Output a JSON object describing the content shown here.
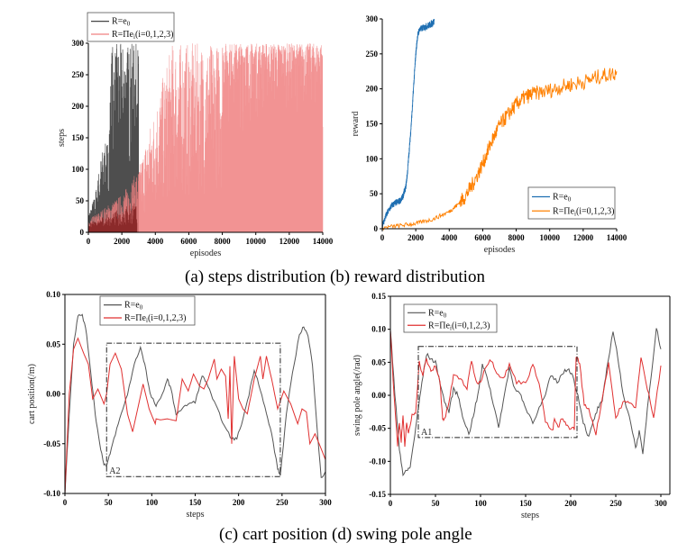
{
  "captions": {
    "top": "(a) steps distribution   (b) reward distribution",
    "bottom": "(c) cart position   (d) swing pole angle"
  },
  "chart_data": [
    {
      "id": "a",
      "type": "line",
      "title": "(a) steps distribution",
      "xlabel": "episodes",
      "ylabel": "steps",
      "xlim": [
        0,
        14000
      ],
      "ylim": [
        0,
        300
      ],
      "xticks": [
        0,
        2000,
        4000,
        6000,
        8000,
        10000,
        12000,
        14000
      ],
      "yticks": [
        0,
        50,
        100,
        150,
        200,
        250,
        300
      ],
      "legend": "top-left-outside",
      "series": [
        {
          "name": "R=e0",
          "name_main": "R=e",
          "name_sub": "0",
          "color": "#444444",
          "x": [
            0,
            400,
            800,
            1200,
            1400,
            1600,
            2000,
            2400,
            2800,
            3000
          ],
          "y_low": [
            0,
            5,
            10,
            15,
            20,
            25,
            40,
            60,
            80,
            100
          ],
          "y_high": [
            30,
            60,
            130,
            150,
            300,
            300,
            300,
            300,
            300,
            300
          ]
        },
        {
          "name": "R=Πei(i=0,1,2,3)",
          "name_main": "R=Πe",
          "name_sub": "i",
          "name_rest": "(i=0,1,2,3)",
          "color": "#f08080",
          "x": [
            0,
            1000,
            2000,
            3000,
            4000,
            5000,
            6000,
            7000,
            8000,
            9000,
            10000,
            11000,
            12000,
            13000,
            14000
          ],
          "y_low": [
            0,
            5,
            10,
            20,
            30,
            40,
            50,
            60,
            60,
            70,
            70,
            70,
            70,
            70,
            70
          ],
          "y_high": [
            20,
            40,
            60,
            100,
            200,
            300,
            300,
            300,
            300,
            300,
            300,
            300,
            300,
            300,
            300
          ]
        }
      ]
    },
    {
      "id": "b",
      "type": "line",
      "title": "(b) reward distribution",
      "xlabel": "episodes",
      "ylabel": "reward",
      "xlim": [
        0,
        14000
      ],
      "ylim": [
        0,
        300
      ],
      "xticks": [
        0,
        2000,
        4000,
        6000,
        8000,
        10000,
        12000,
        14000
      ],
      "yticks": [
        0,
        50,
        100,
        150,
        200,
        250,
        300
      ],
      "legend": "bottom-right",
      "series": [
        {
          "name": "R=e0",
          "name_main": "R=e",
          "name_sub": "0",
          "color": "#1f6fb2",
          "x": [
            0,
            200,
            400,
            600,
            800,
            1000,
            1200,
            1400,
            1500,
            1600,
            1700,
            1800,
            1900,
            2000,
            2100,
            2200,
            2400,
            2600,
            2800,
            3000,
            3100
          ],
          "y": [
            5,
            18,
            28,
            35,
            38,
            40,
            45,
            60,
            80,
            110,
            140,
            175,
            215,
            250,
            275,
            285,
            288,
            290,
            292,
            295,
            298
          ]
        },
        {
          "name": "R=Πei(i=0,1,2,3)",
          "name_main": "R=Πe",
          "name_sub": "i",
          "name_rest": "(i=0,1,2,3)",
          "color": "#ff8000",
          "x": [
            0,
            1000,
            2000,
            3000,
            4000,
            4500,
            5000,
            5500,
            6000,
            6500,
            7000,
            7500,
            8000,
            8500,
            9000,
            10000,
            11000,
            12000,
            13000,
            14000
          ],
          "y": [
            2,
            5,
            8,
            14,
            25,
            35,
            50,
            70,
            95,
            125,
            150,
            165,
            180,
            190,
            195,
            200,
            207,
            212,
            220,
            225
          ]
        }
      ]
    },
    {
      "id": "c",
      "type": "line",
      "title": "(c) cart position",
      "xlabel": "steps",
      "ylabel": "cart position(/m)",
      "xlim": [
        0,
        300
      ],
      "ylim": [
        -0.1,
        0.1
      ],
      "xticks": [
        0,
        50,
        100,
        150,
        200,
        250,
        300
      ],
      "yticks": [
        -0.1,
        -0.05,
        0.0,
        0.05,
        0.1
      ],
      "legend": "top-left",
      "annotation": {
        "label": "A2",
        "box_x": [
          48,
          248
        ],
        "box_y": [
          -0.083,
          0.051
        ]
      },
      "series": [
        {
          "name": "R=e0",
          "name_main": "R=e",
          "name_sub": "0",
          "color": "#555555",
          "x": [
            0,
            5,
            10,
            15,
            20,
            25,
            30,
            35,
            40,
            45,
            48,
            52,
            58,
            65,
            72,
            80,
            87,
            92,
            98,
            105,
            110,
            118,
            122,
            128,
            135,
            142,
            150,
            158,
            163,
            170,
            178,
            185,
            192,
            198,
            205,
            212,
            218,
            225,
            232,
            238,
            245,
            248,
            255,
            262,
            270,
            275,
            280,
            285,
            290,
            295,
            300
          ],
          "y": [
            -0.1,
            -0.02,
            0.05,
            0.078,
            0.08,
            0.06,
            0.02,
            -0.02,
            -0.05,
            -0.07,
            -0.073,
            -0.06,
            -0.04,
            -0.02,
            0.0,
            0.03,
            0.047,
            0.03,
            0.0,
            -0.012,
            -0.005,
            0.015,
            0.005,
            -0.02,
            -0.015,
            -0.01,
            -0.008,
            0.018,
            0.012,
            -0.005,
            -0.02,
            -0.035,
            -0.045,
            -0.045,
            -0.025,
            0.0,
            0.025,
            0.005,
            -0.02,
            -0.04,
            -0.075,
            -0.082,
            -0.02,
            0.02,
            0.06,
            0.068,
            0.058,
            0.03,
            -0.03,
            -0.085,
            -0.078
          ]
        },
        {
          "name": "R=Πei(i=0,1,2,3)",
          "name_main": "R=Πe",
          "name_sub": "i",
          "name_rest": "(i=0,1,2,3)",
          "color": "#e03030",
          "x": [
            0,
            5,
            10,
            15,
            22,
            27,
            32,
            38,
            45,
            48,
            52,
            58,
            65,
            72,
            78,
            85,
            90,
            97,
            104,
            105,
            110,
            118,
            128,
            135,
            142,
            148,
            155,
            160,
            165,
            172,
            175,
            180,
            185,
            188,
            190,
            192,
            195,
            200,
            205,
            210,
            218,
            225,
            228,
            232,
            238,
            245,
            252,
            260,
            268,
            273,
            278,
            282,
            288,
            295,
            300
          ],
          "y": [
            -0.1,
            0.0,
            0.045,
            0.056,
            0.04,
            0.03,
            -0.005,
            0.005,
            -0.01,
            0.0,
            0.03,
            0.041,
            0.025,
            -0.02,
            -0.038,
            -0.01,
            0.01,
            -0.015,
            -0.03,
            -0.025,
            -0.026,
            -0.025,
            -0.027,
            0.015,
            0.003,
            0.02,
            0.008,
            0.005,
            0.015,
            0.035,
            0.015,
            0.025,
            0.018,
            -0.025,
            0.028,
            -0.05,
            0.038,
            -0.005,
            -0.015,
            -0.02,
            0.015,
            0.038,
            0.015,
            0.038,
            0.015,
            -0.015,
            0.003,
            -0.01,
            -0.03,
            -0.015,
            -0.018,
            -0.05,
            -0.04,
            -0.055,
            -0.066
          ]
        }
      ]
    },
    {
      "id": "d",
      "type": "line",
      "title": "(d) swing pole angle",
      "xlabel": "steps",
      "ylabel": "swing pole angle(/rad)",
      "xlim": [
        0,
        300
      ],
      "ylim": [
        -0.15,
        0.15
      ],
      "xticks": [
        0,
        50,
        100,
        150,
        200,
        250,
        300
      ],
      "yticks": [
        -0.15,
        -0.1,
        -0.05,
        0.0,
        0.05,
        0.1,
        0.15
      ],
      "legend": "top-left",
      "annotation": {
        "label": "A1",
        "box_x": [
          31,
          207
        ],
        "box_y": [
          -0.064,
          0.074
        ]
      },
      "series": [
        {
          "name": "R=e0",
          "name_main": "R=e",
          "name_sub": "0",
          "color": "#555555",
          "x": [
            0,
            5,
            10,
            14,
            18,
            22,
            26,
            30,
            35,
            40,
            45,
            50,
            55,
            60,
            65,
            70,
            75,
            80,
            87,
            92,
            97,
            102,
            107,
            112,
            120,
            125,
            132,
            138,
            145,
            150,
            158,
            165,
            172,
            178,
            185,
            192,
            198,
            202,
            208,
            214,
            220,
            225,
            230,
            235,
            240,
            247,
            252,
            258,
            265,
            272,
            276,
            280,
            285,
            290,
            295,
            300
          ],
          "y": [
            0.1,
            0.0,
            -0.08,
            -0.12,
            -0.115,
            -0.108,
            -0.07,
            -0.03,
            0.02,
            0.062,
            0.055,
            0.05,
            0.02,
            -0.01,
            -0.025,
            0.01,
            0.0,
            -0.03,
            -0.06,
            -0.03,
            0.0,
            0.045,
            0.03,
            0.0,
            -0.047,
            -0.01,
            0.04,
            0.01,
            0.0,
            -0.02,
            -0.04,
            -0.02,
            0.0,
            0.03,
            0.02,
            0.035,
            0.04,
            0.03,
            0.0,
            -0.04,
            -0.064,
            -0.04,
            -0.02,
            -0.01,
            0.04,
            0.098,
            0.06,
            0.0,
            -0.03,
            -0.08,
            -0.055,
            -0.09,
            -0.02,
            0.04,
            0.102,
            0.07
          ]
        },
        {
          "name": "R=Πei(i=0,1,2,3)",
          "name_main": "R=Πe",
          "name_sub": "i",
          "name_rest": "(i=0,1,2,3)",
          "color": "#e03030",
          "x": [
            0,
            4,
            8,
            10,
            12,
            14,
            16,
            18,
            20,
            24,
            28,
            32,
            36,
            40,
            45,
            50,
            55,
            58,
            60,
            65,
            70,
            78,
            85,
            90,
            95,
            100,
            105,
            112,
            118,
            125,
            132,
            140,
            150,
            158,
            165,
            172,
            180,
            182,
            186,
            190,
            195,
            200,
            204,
            206,
            210,
            215,
            220,
            228,
            235,
            242,
            250,
            258,
            265,
            272,
            278,
            285,
            292,
            300
          ],
          "y": [
            0.1,
            0.0,
            -0.075,
            -0.04,
            -0.07,
            -0.03,
            -0.08,
            -0.04,
            -0.06,
            -0.03,
            -0.025,
            0.05,
            0.03,
            0.055,
            0.035,
            0.045,
            0.02,
            -0.035,
            -0.038,
            -0.01,
            0.03,
            0.025,
            0.01,
            0.054,
            0.02,
            0.02,
            0.043,
            0.054,
            0.035,
            0.025,
            0.046,
            0.02,
            0.02,
            0.045,
            0.02,
            -0.04,
            -0.055,
            -0.035,
            -0.05,
            -0.035,
            -0.045,
            -0.05,
            -0.05,
            0.06,
            0.048,
            -0.015,
            -0.02,
            -0.058,
            -0.005,
            0.05,
            -0.035,
            -0.01,
            -0.012,
            -0.017,
            0.056,
            0.01,
            -0.032,
            0.045
          ]
        }
      ]
    }
  ]
}
